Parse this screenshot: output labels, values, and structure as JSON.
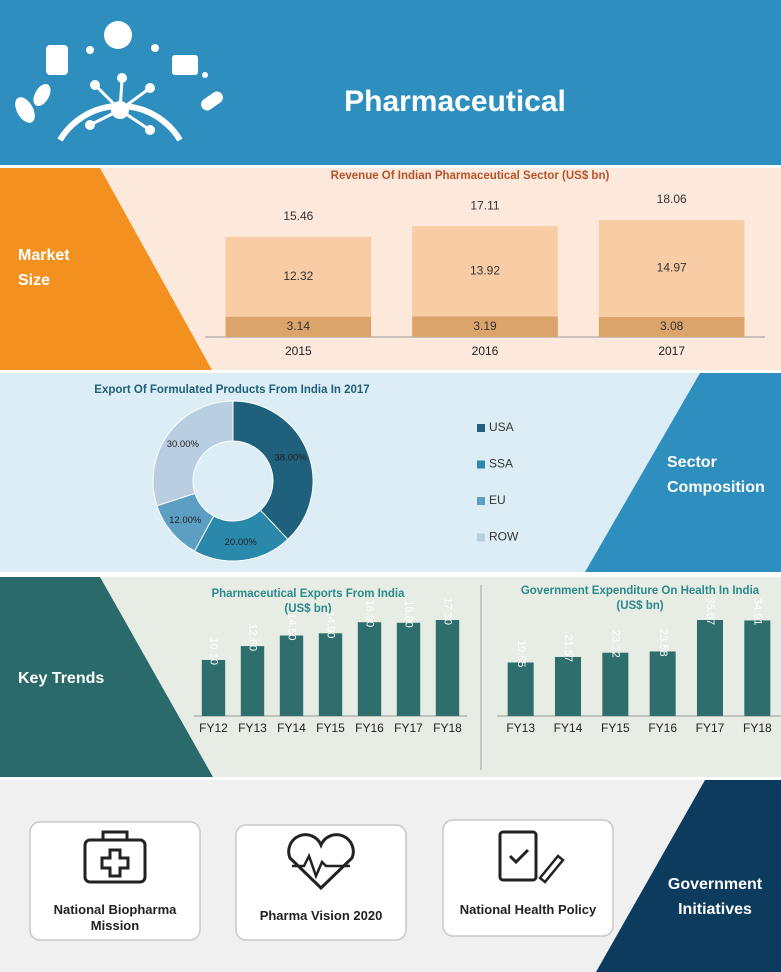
{
  "header": {
    "title": "Pharmaceutical"
  },
  "sections": [
    "Market Size",
    "Sector Composition",
    "Key Trends",
    "Government Initiatives"
  ],
  "initiatives": [
    "National Biopharma Mission",
    "Pharma Vision 2020",
    "National Health Policy"
  ],
  "chart_data": [
    {
      "type": "bar",
      "title": "Revenue Of Indian Pharmaceutical Sector (US$ bn)",
      "categories": [
        "2015",
        "2016",
        "2017"
      ],
      "series": [
        {
          "color": "#dba46b",
          "values": [
            3.14,
            3.19,
            3.08
          ]
        },
        {
          "color": "#f8cda6",
          "values": [
            12.32,
            13.92,
            14.97
          ]
        }
      ],
      "totals": [
        15.46,
        17.11,
        18.06
      ]
    },
    {
      "type": "donut",
      "title": "Export Of Formulated Products From India In 2017",
      "categories": [
        "USA",
        "SSA",
        "EU",
        "ROW"
      ],
      "values": [
        38,
        20,
        12,
        30
      ],
      "value_labels": [
        "38.00%",
        "20.00%",
        "12.00%",
        "30.00%"
      ],
      "colors": [
        "#1f607c",
        "#2a88ab",
        "#5d9fc3",
        "#b9cfe1"
      ]
    },
    {
      "type": "bar",
      "title": "Pharmaceutical Exports From India",
      "subtitle": "(US$ bn)",
      "categories": [
        "FY12",
        "FY13",
        "FY14",
        "FY15",
        "FY16",
        "FY17",
        "FY18"
      ],
      "values": [
        10.1,
        12.6,
        14.5,
        14.9,
        16.9,
        16.8,
        17.3
      ],
      "value_labels": [
        "10.10",
        "12.60",
        "14.50",
        "14.90",
        "16.90",
        "16.80",
        "17.30"
      ],
      "color": "#2e6e6c"
    },
    {
      "type": "bar",
      "title": "Government Expenditure On Health In India",
      "subtitle": "(US$ bn)",
      "categories": [
        "FY13",
        "FY14",
        "FY15",
        "FY16",
        "FY17",
        "FY18"
      ],
      "values": [
        19.55,
        21.57,
        23.12,
        23.58,
        35.07,
        34.91
      ],
      "color": "#2e6e6c"
    }
  ]
}
